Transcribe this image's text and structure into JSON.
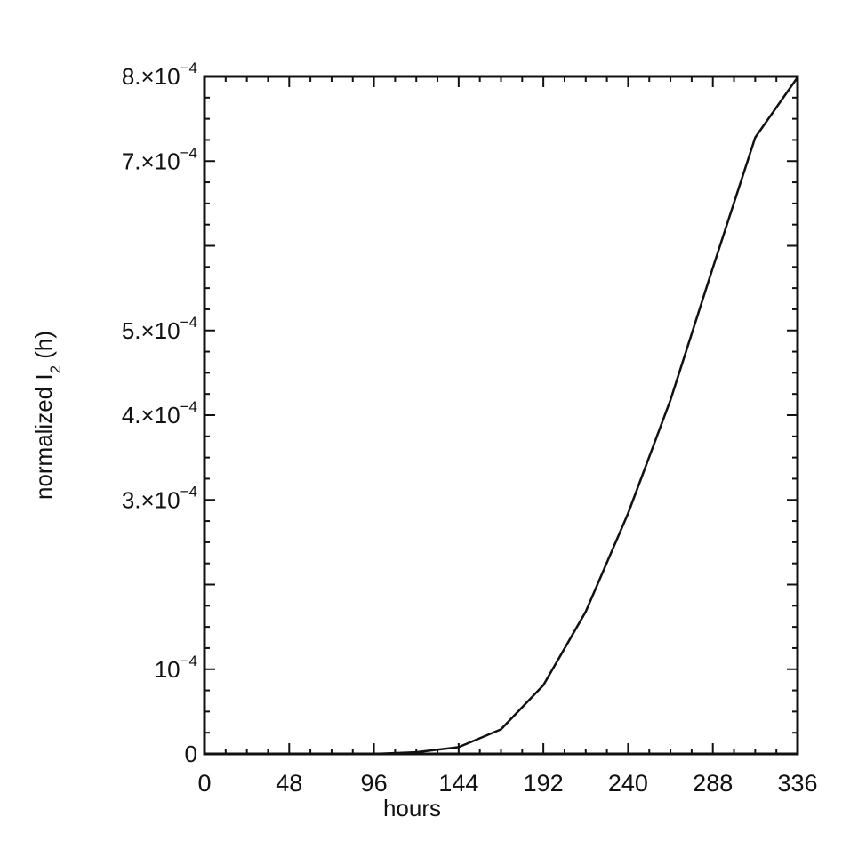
{
  "chart_data": {
    "type": "line",
    "title": "",
    "xlabel": "hours",
    "ylabel_main": "normalized I",
    "ylabel_sub": "2",
    "ylabel_tail": " (h)",
    "xlim": [
      0,
      336
    ],
    "ylim": [
      0,
      0.0008
    ],
    "x_ticks": [
      0,
      48,
      96,
      144,
      192,
      240,
      288,
      336
    ],
    "x_tick_labels": [
      "0",
      "48",
      "96",
      "144",
      "192",
      "240",
      "288",
      "336"
    ],
    "y_ticks": [
      {
        "value": 0,
        "mantissa": "0",
        "exponent": ""
      },
      {
        "value": 0.0001,
        "mantissa": "10",
        "exponent": "−4"
      },
      {
        "value": 0.0003,
        "mantissa": "3.×10",
        "exponent": "−4"
      },
      {
        "value": 0.0004,
        "mantissa": "4.×10",
        "exponent": "−4"
      },
      {
        "value": 0.0005,
        "mantissa": "5.×10",
        "exponent": "−4"
      },
      {
        "value": 0.0007,
        "mantissa": "7.×10",
        "exponent": "−4"
      },
      {
        "value": 0.0008,
        "mantissa": "8.×10",
        "exponent": "−4"
      }
    ],
    "series": [
      {
        "x": [
          0,
          96,
          120,
          132,
          144,
          168,
          192,
          216,
          240,
          264,
          288,
          312,
          336
        ],
        "y": [
          0,
          0,
          2e-06,
          5e-06,
          8e-06,
          2.9e-05,
          8.1e-05,
          0.000168,
          0.000284,
          0.000418,
          0.000574,
          0.000728,
          0.000799
        ]
      }
    ],
    "grid": false,
    "legend": "none"
  }
}
